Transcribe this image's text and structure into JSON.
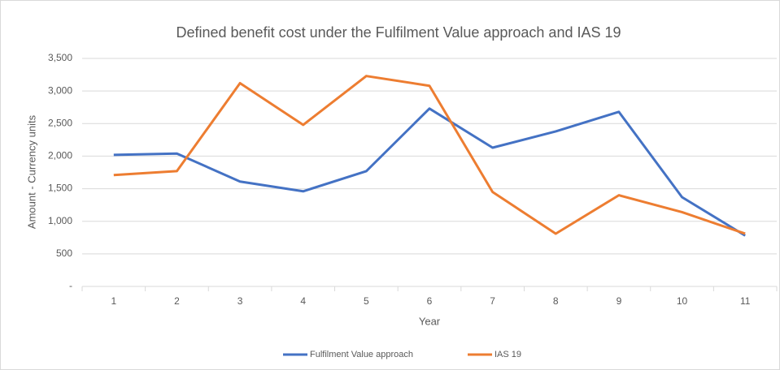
{
  "chart_data": {
    "type": "line",
    "title": "Defined benefit cost under the Fulfilment Value approach and IAS 19",
    "x_label": "Year",
    "y_label": "Amount - Currency units",
    "categories": [
      "1",
      "2",
      "3",
      "4",
      "5",
      "6",
      "7",
      "8",
      "9",
      "10",
      "11"
    ],
    "series": [
      {
        "name": "Fulfilment Value approach",
        "color": "#4472c4",
        "values": [
          2020,
          2040,
          1610,
          1460,
          1770,
          2730,
          2130,
          2380,
          2680,
          1370,
          780
        ]
      },
      {
        "name": "IAS 19",
        "color": "#ed7d31",
        "values": [
          1710,
          1770,
          3120,
          2480,
          3230,
          3080,
          1450,
          810,
          1400,
          1140,
          810
        ]
      }
    ],
    "ylim": [
      0,
      3500
    ],
    "yticks": [
      {
        "value": 0,
        "label": "-"
      },
      500,
      {
        "value": 1000,
        "label": "1,000"
      },
      {
        "value": 1500,
        "label": "1,500"
      },
      {
        "value": 2000,
        "label": "2,000"
      },
      {
        "value": 2500,
        "label": "2,500"
      },
      {
        "value": 3000,
        "label": "3,000"
      },
      {
        "value": 3500,
        "label": "3,500"
      }
    ],
    "grid": true,
    "legend": "bottom"
  }
}
